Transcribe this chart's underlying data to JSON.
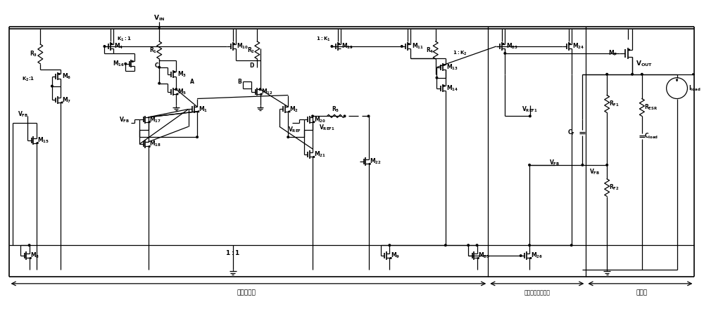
{
  "fig_width": 10.0,
  "fig_height": 4.4,
  "bg_color": "#ffffff",
  "lw": 0.9,
  "lw_thick": 1.2,
  "fs": 5.5,
  "fs_label": 6.5,
  "section_labels": [
    "误差放大器",
    "动态基准控制模块",
    "功率级"
  ],
  "ratio_labels": [
    "K_1 : 1",
    "1 : K_1",
    "K_2:1",
    "1:K_2",
    "1 : 1"
  ]
}
